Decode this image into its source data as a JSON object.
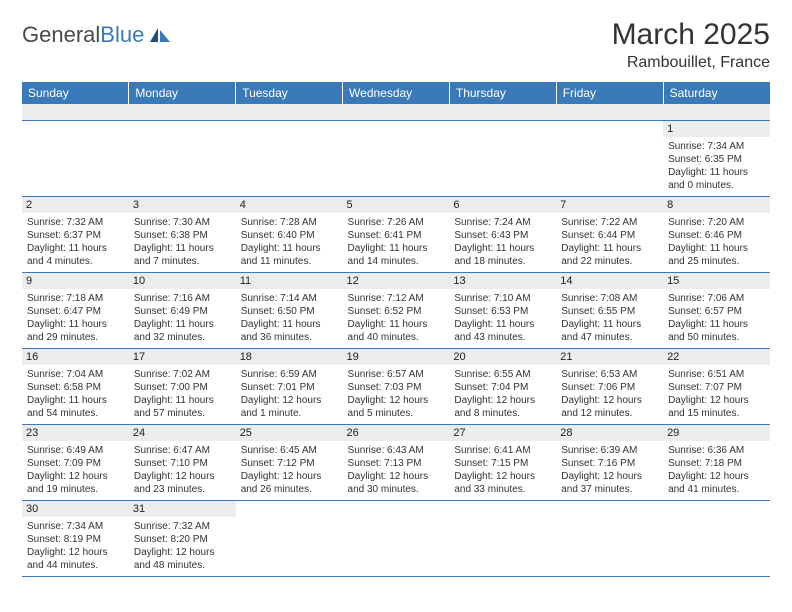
{
  "logo": {
    "general": "General",
    "blue": "Blue"
  },
  "title": "March 2025",
  "location": "Rambouillet, France",
  "colors": {
    "header_bg": "#3a7ab8",
    "header_text": "#ffffff",
    "daynum_bg": "#ececec",
    "border": "#3a7ab8",
    "text": "#333333"
  },
  "weekdays": [
    "Sunday",
    "Monday",
    "Tuesday",
    "Wednesday",
    "Thursday",
    "Friday",
    "Saturday"
  ],
  "weeks": [
    [
      null,
      null,
      null,
      null,
      null,
      null,
      {
        "n": "1",
        "sr": "Sunrise: 7:34 AM",
        "ss": "Sunset: 6:35 PM",
        "d1": "Daylight: 11 hours",
        "d2": "and 0 minutes."
      }
    ],
    [
      {
        "n": "2",
        "sr": "Sunrise: 7:32 AM",
        "ss": "Sunset: 6:37 PM",
        "d1": "Daylight: 11 hours",
        "d2": "and 4 minutes."
      },
      {
        "n": "3",
        "sr": "Sunrise: 7:30 AM",
        "ss": "Sunset: 6:38 PM",
        "d1": "Daylight: 11 hours",
        "d2": "and 7 minutes."
      },
      {
        "n": "4",
        "sr": "Sunrise: 7:28 AM",
        "ss": "Sunset: 6:40 PM",
        "d1": "Daylight: 11 hours",
        "d2": "and 11 minutes."
      },
      {
        "n": "5",
        "sr": "Sunrise: 7:26 AM",
        "ss": "Sunset: 6:41 PM",
        "d1": "Daylight: 11 hours",
        "d2": "and 14 minutes."
      },
      {
        "n": "6",
        "sr": "Sunrise: 7:24 AM",
        "ss": "Sunset: 6:43 PM",
        "d1": "Daylight: 11 hours",
        "d2": "and 18 minutes."
      },
      {
        "n": "7",
        "sr": "Sunrise: 7:22 AM",
        "ss": "Sunset: 6:44 PM",
        "d1": "Daylight: 11 hours",
        "d2": "and 22 minutes."
      },
      {
        "n": "8",
        "sr": "Sunrise: 7:20 AM",
        "ss": "Sunset: 6:46 PM",
        "d1": "Daylight: 11 hours",
        "d2": "and 25 minutes."
      }
    ],
    [
      {
        "n": "9",
        "sr": "Sunrise: 7:18 AM",
        "ss": "Sunset: 6:47 PM",
        "d1": "Daylight: 11 hours",
        "d2": "and 29 minutes."
      },
      {
        "n": "10",
        "sr": "Sunrise: 7:16 AM",
        "ss": "Sunset: 6:49 PM",
        "d1": "Daylight: 11 hours",
        "d2": "and 32 minutes."
      },
      {
        "n": "11",
        "sr": "Sunrise: 7:14 AM",
        "ss": "Sunset: 6:50 PM",
        "d1": "Daylight: 11 hours",
        "d2": "and 36 minutes."
      },
      {
        "n": "12",
        "sr": "Sunrise: 7:12 AM",
        "ss": "Sunset: 6:52 PM",
        "d1": "Daylight: 11 hours",
        "d2": "and 40 minutes."
      },
      {
        "n": "13",
        "sr": "Sunrise: 7:10 AM",
        "ss": "Sunset: 6:53 PM",
        "d1": "Daylight: 11 hours",
        "d2": "and 43 minutes."
      },
      {
        "n": "14",
        "sr": "Sunrise: 7:08 AM",
        "ss": "Sunset: 6:55 PM",
        "d1": "Daylight: 11 hours",
        "d2": "and 47 minutes."
      },
      {
        "n": "15",
        "sr": "Sunrise: 7:06 AM",
        "ss": "Sunset: 6:57 PM",
        "d1": "Daylight: 11 hours",
        "d2": "and 50 minutes."
      }
    ],
    [
      {
        "n": "16",
        "sr": "Sunrise: 7:04 AM",
        "ss": "Sunset: 6:58 PM",
        "d1": "Daylight: 11 hours",
        "d2": "and 54 minutes."
      },
      {
        "n": "17",
        "sr": "Sunrise: 7:02 AM",
        "ss": "Sunset: 7:00 PM",
        "d1": "Daylight: 11 hours",
        "d2": "and 57 minutes."
      },
      {
        "n": "18",
        "sr": "Sunrise: 6:59 AM",
        "ss": "Sunset: 7:01 PM",
        "d1": "Daylight: 12 hours",
        "d2": "and 1 minute."
      },
      {
        "n": "19",
        "sr": "Sunrise: 6:57 AM",
        "ss": "Sunset: 7:03 PM",
        "d1": "Daylight: 12 hours",
        "d2": "and 5 minutes."
      },
      {
        "n": "20",
        "sr": "Sunrise: 6:55 AM",
        "ss": "Sunset: 7:04 PM",
        "d1": "Daylight: 12 hours",
        "d2": "and 8 minutes."
      },
      {
        "n": "21",
        "sr": "Sunrise: 6:53 AM",
        "ss": "Sunset: 7:06 PM",
        "d1": "Daylight: 12 hours",
        "d2": "and 12 minutes."
      },
      {
        "n": "22",
        "sr": "Sunrise: 6:51 AM",
        "ss": "Sunset: 7:07 PM",
        "d1": "Daylight: 12 hours",
        "d2": "and 15 minutes."
      }
    ],
    [
      {
        "n": "23",
        "sr": "Sunrise: 6:49 AM",
        "ss": "Sunset: 7:09 PM",
        "d1": "Daylight: 12 hours",
        "d2": "and 19 minutes."
      },
      {
        "n": "24",
        "sr": "Sunrise: 6:47 AM",
        "ss": "Sunset: 7:10 PM",
        "d1": "Daylight: 12 hours",
        "d2": "and 23 minutes."
      },
      {
        "n": "25",
        "sr": "Sunrise: 6:45 AM",
        "ss": "Sunset: 7:12 PM",
        "d1": "Daylight: 12 hours",
        "d2": "and 26 minutes."
      },
      {
        "n": "26",
        "sr": "Sunrise: 6:43 AM",
        "ss": "Sunset: 7:13 PM",
        "d1": "Daylight: 12 hours",
        "d2": "and 30 minutes."
      },
      {
        "n": "27",
        "sr": "Sunrise: 6:41 AM",
        "ss": "Sunset: 7:15 PM",
        "d1": "Daylight: 12 hours",
        "d2": "and 33 minutes."
      },
      {
        "n": "28",
        "sr": "Sunrise: 6:39 AM",
        "ss": "Sunset: 7:16 PM",
        "d1": "Daylight: 12 hours",
        "d2": "and 37 minutes."
      },
      {
        "n": "29",
        "sr": "Sunrise: 6:36 AM",
        "ss": "Sunset: 7:18 PM",
        "d1": "Daylight: 12 hours",
        "d2": "and 41 minutes."
      }
    ],
    [
      {
        "n": "30",
        "sr": "Sunrise: 7:34 AM",
        "ss": "Sunset: 8:19 PM",
        "d1": "Daylight: 12 hours",
        "d2": "and 44 minutes."
      },
      {
        "n": "31",
        "sr": "Sunrise: 7:32 AM",
        "ss": "Sunset: 8:20 PM",
        "d1": "Daylight: 12 hours",
        "d2": "and 48 minutes."
      },
      null,
      null,
      null,
      null,
      null
    ]
  ]
}
